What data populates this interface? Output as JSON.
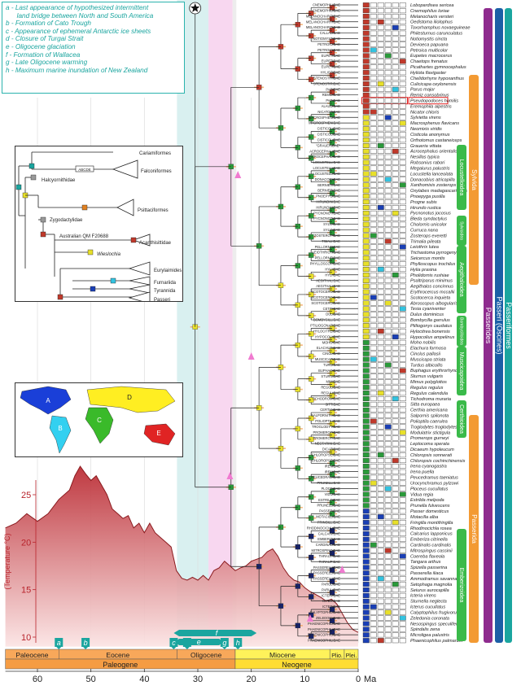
{
  "events": [
    {
      "letter": "a",
      "text": "a - Last appearance of hypothesized intermittent\n      land bridge between North and South America"
    },
    {
      "letter": "b",
      "text": "b - Formation of Cato Trough"
    },
    {
      "letter": "c",
      "text": "c - Appearance of ephemeral Antarctic ice sheets"
    },
    {
      "letter": "d",
      "text": "d - Closure of Turgai Strait"
    },
    {
      "letter": "e",
      "text": "e - Oligocene glaciation"
    },
    {
      "letter": "f",
      "text": "f - Formation of Wallacea"
    },
    {
      "letter": "g",
      "text": "g - Late Oligocene warming"
    },
    {
      "letter": "h",
      "text": "h - Maximum marine inundation of New Zealand"
    }
  ],
  "event_markers": [
    {
      "label": "a",
      "ma": 56
    },
    {
      "label": "b",
      "ma": 51
    },
    {
      "label": "c",
      "ma": 34.5
    },
    {
      "label": "d",
      "ma": 32
    },
    {
      "label": "e",
      "ma": 28
    },
    {
      "label": "f",
      "ma": 23
    },
    {
      "label": "g",
      "ma": 25
    },
    {
      "label": "h",
      "ma": 22.5
    }
  ],
  "time_axis": {
    "unit": "Ma",
    "ticks": [
      "60",
      "50",
      "40",
      "30",
      "20",
      "10",
      "0"
    ],
    "tick_values": [
      60,
      50,
      40,
      30,
      20,
      10,
      0
    ],
    "range": [
      66,
      0
    ],
    "epochs": [
      {
        "name": "Paleocene",
        "start": 66,
        "end": 56
      },
      {
        "name": "Eocene",
        "start": 56,
        "end": 33.9
      },
      {
        "name": "Oligocene",
        "start": 33.9,
        "end": 23
      },
      {
        "name": "Miocene",
        "start": 23,
        "end": 5.3
      },
      {
        "name": "Plio.",
        "start": 5.3,
        "end": 2.6
      },
      {
        "name": "Plei.",
        "start": 2.6,
        "end": 0
      }
    ],
    "periods": [
      {
        "name": "Paleogene",
        "start": 66,
        "end": 23
      },
      {
        "name": "Neogene",
        "start": 23,
        "end": 0
      }
    ]
  },
  "temperature": {
    "ylabel": "(Temperature °C)",
    "ticks": [
      "25",
      "20",
      "15",
      "10"
    ],
    "tick_values": [
      25,
      20,
      15,
      10
    ],
    "range": [
      9,
      28
    ],
    "curve": [
      [
        66,
        21.5
      ],
      [
        64,
        22
      ],
      [
        62,
        23
      ],
      [
        60,
        22.2
      ],
      [
        58,
        23
      ],
      [
        56,
        24.5
      ],
      [
        54,
        25.5
      ],
      [
        53,
        27
      ],
      [
        52,
        28
      ],
      [
        51,
        27.2
      ],
      [
        50,
        26.5
      ],
      [
        49,
        27
      ],
      [
        48,
        26
      ],
      [
        47,
        25
      ],
      [
        46,
        23.5
      ],
      [
        45,
        23
      ],
      [
        44,
        22.5
      ],
      [
        43,
        22.8
      ],
      [
        42,
        21.5
      ],
      [
        41,
        22
      ],
      [
        40,
        21
      ],
      [
        39,
        22
      ],
      [
        38,
        21
      ],
      [
        37,
        20.5
      ],
      [
        36,
        20
      ],
      [
        35,
        19.5
      ],
      [
        34,
        17
      ],
      [
        33,
        16.2
      ],
      [
        32,
        16
      ],
      [
        31,
        16.3
      ],
      [
        30,
        16
      ],
      [
        29,
        16.5
      ],
      [
        28,
        16
      ],
      [
        27,
        17
      ],
      [
        26,
        17.3
      ],
      [
        25,
        18
      ],
      [
        24,
        17.5
      ],
      [
        23,
        17
      ],
      [
        22,
        17.3
      ],
      [
        21,
        17.5
      ],
      [
        20,
        18
      ],
      [
        19,
        18.2
      ],
      [
        18,
        18.4
      ],
      [
        17,
        19
      ],
      [
        16,
        19.3
      ],
      [
        15,
        18.5
      ],
      [
        14,
        17.3
      ],
      [
        13,
        16.5
      ],
      [
        12,
        16
      ],
      [
        11,
        15.8
      ],
      [
        10,
        15.2
      ],
      [
        9,
        14.8
      ],
      [
        8,
        14.5
      ],
      [
        7,
        14.2
      ],
      [
        6,
        13.8
      ],
      [
        5,
        14
      ],
      [
        4,
        13.5
      ],
      [
        3,
        12.5
      ],
      [
        2,
        11.5
      ],
      [
        1,
        10.8
      ],
      [
        0,
        10.5
      ]
    ]
  },
  "inset_tree": {
    "taxa": [
      "Cariamiformes",
      "Falconiformes",
      "Halcyornithidae",
      "Psittaciformes",
      "Zygodactylidae",
      "Australian QM F20688",
      "Acanthisittidae",
      "Wieslochia",
      "Eurylaimides",
      "Furnariida",
      "Tyrannida",
      "Passeri"
    ],
    "node_label": "ABCDE"
  },
  "continents": [
    "A",
    "B",
    "C",
    "D",
    "E"
  ],
  "clade_bars": {
    "orange": [
      {
        "name": "Sylvida",
        "top": 92,
        "bottom": 350
      },
      {
        "name": "Passerida",
        "top": 510,
        "bottom": 790
      }
    ],
    "green": [
      {
        "name": "Locustelloidea",
        "top": 178,
        "bottom": 258
      },
      {
        "name": "Sylvioidea",
        "top": 265,
        "bottom": 302
      },
      {
        "name": "Aegithaloidea",
        "top": 302,
        "bottom": 385
      },
      {
        "name": "Bombycilloidea",
        "top": 388,
        "bottom": 426
      },
      {
        "name": "Muscicapoidea",
        "top": 426,
        "bottom": 486
      },
      {
        "name": "Certhioidea",
        "top": 492,
        "bottom": 538
      },
      {
        "name": "Emberizoidea",
        "top": 650,
        "bottom": 788
      }
    ],
    "purple": {
      "name": "Passerides",
      "top": 10,
      "bottom": 790
    },
    "blue": {
      "name": "Passeri (Oscines)",
      "top": 10,
      "bottom": 790
    },
    "teal": {
      "name": "Passeriformes",
      "top": 10,
      "bottom": 790
    }
  },
  "highlighted_taxon": "Pseudopodoces humilis",
  "tips": [
    [
      "CNEMOPHILIDAE",
      "Lobopardisea sericea"
    ],
    [
      "CNEMOPHILIDAE",
      "Cnemophilus loriae"
    ],
    [
      "MELANOCHARITIDAE",
      "Melanocharis versteri"
    ],
    [
      "MELANOCHARITIDAE",
      "Oedistoma iliolophus"
    ],
    [
      "MELANOCHARITIDAE",
      "Toxorhamphus novaeguineae"
    ],
    [
      "CALLAEIDAE",
      "Philesturnus carunculatus"
    ],
    [
      "NOTIOMYSTIDAE",
      "Notiomystis cincta"
    ],
    [
      "PETROICIDAE",
      "Devioeca papuana"
    ],
    [
      "PETROICIDAE",
      "Petroica multicolor"
    ],
    [
      "EUPETIDAE",
      "Eupetes macrocerus"
    ],
    [
      "EUPETIDAE",
      "Chaetops frenatus"
    ],
    [
      "EUPETIDAE",
      "Picathartes gymnocephalus"
    ],
    [
      "HYLIOTIDAE",
      "Hyliota flavigaster"
    ],
    [
      "STENOSTIRIDAE",
      "Chelidorhynx hypoxanthus"
    ],
    [
      "STENOSTIRIDAE",
      "Culicicapa ceylonensis"
    ],
    [
      "PARIDAE",
      "Parus major"
    ],
    [
      "REMIZIDAE",
      "Remiz consobrinus"
    ],
    [
      "PARIDAE",
      "Pseudopodoces humilis"
    ],
    [
      "ALAUDIDAE",
      "Eremophila alpestris"
    ],
    [
      "NICATORIDAE",
      "Nicator chloris"
    ],
    [
      "MACROSPHENIDAE",
      "Sylvietta virens"
    ],
    [
      "MACROSPHENIDAE",
      "Macrosphenus flavicans"
    ],
    [
      "CISTICOLIDAE",
      "Neomixis viridis"
    ],
    [
      "CISTICOLIDAE",
      "Cisticola anonymus"
    ],
    [
      "CISTICOLIDAE",
      "Orthotomus castaneiceps"
    ],
    [
      "\"GRAUERIDAE\"",
      "Graueria vittata"
    ],
    [
      "ACROCEPHALIDAE",
      "Acrocephalus orientalis"
    ],
    [
      "ACROCEPHALIDAE",
      "Nesillas typica"
    ],
    [
      "LOCUSTELLIDAE",
      "Robsonius rabori"
    ],
    [
      "LOCUSTELLIDAE",
      "Megalurus palustris"
    ],
    [
      "LOCUSTELLIDAE",
      "Locustella lanceolata"
    ],
    [
      "DONACOBIIDAE",
      "Donacobius atricapilla"
    ],
    [
      "BERNIERIDAE",
      "Xanthomixis zosterops"
    ],
    [
      "BERNIERIDAE",
      "Oxylabes madagascariensis"
    ],
    [
      "PNOEPYGIDAE",
      "Pnoepyga pusilla"
    ],
    [
      "HIRUNDINIDAE",
      "Progne subis"
    ],
    [
      "HIRUNDINIDAE",
      "Hirundo rustica"
    ],
    [
      "PYCNONOTIDAE",
      "Pycnonotus jocosus"
    ],
    [
      "PYCNONOTIDAE",
      "Bleda syndactylus"
    ],
    [
      "SYLVIIDAE",
      "Cholornis unicolor"
    ],
    [
      "SYLVIIDAE",
      "Curruca nana"
    ],
    [
      "ZOSTEROPIDAE",
      "Zosterops everetti"
    ],
    [
      "TIMALIIDAE",
      "Trimalia pileata"
    ],
    [
      "PELLORNEIDAE",
      "Leiothrix lutea"
    ],
    [
      "LEIOTHRICHIDAE",
      "Trichastoma pyrrogenys"
    ],
    [
      "PELLORNEIDAE",
      "Seicercus montis"
    ],
    [
      "PHYLLOSCOPIDAE",
      "Phylloscopus trochilus"
    ],
    [
      "HYLIIDAE",
      "Hylia prasina"
    ],
    [
      "HYLIIDAE",
      "Pholidornis rushiae"
    ],
    [
      "AEGITHALIDAE",
      "Psaltriparus minimus"
    ],
    [
      "AEGITHALIDAE",
      "Aegithalos concinnus"
    ],
    [
      "SCOTOCERCIDAE",
      "Erythrocercus mccallii"
    ],
    [
      "SCOTOCERCIDAE",
      "Scotocerca inquieta"
    ],
    [
      "SCOTOCERCIDAE",
      "Abroscopus albogularis"
    ],
    [
      "CETTIIDAE",
      "Tesia cyaniventer"
    ],
    [
      "DULIDAE",
      "Dulus dominicus"
    ],
    [
      "BOMBYCILLIDAE",
      "Bombycilla garrulus"
    ],
    [
      "PTILIOGONATIDAE",
      "Ptiliogonys caudatus"
    ],
    [
      "HYLOCITREIDAE",
      "Hylocitrea bonensis"
    ],
    [
      "HYPOCOLIIDAE",
      "Hypocolius ampelinus"
    ],
    [
      "MOHOIDAE",
      "Moho nobilis"
    ],
    [
      "ELACHURIDAE",
      "Elachura formosa"
    ],
    [
      "CINCLIDAE",
      "Cinclus pallasii"
    ],
    [
      "MUSCICAPIDAE",
      "Muscicapa striata"
    ],
    [
      "TURDIDAE",
      "Turdus albicollis"
    ],
    [
      "BUPHAGIDAE",
      "Buphagus erythrorhynchus"
    ],
    [
      "STURNIDAE",
      "Sturnus vulgaris"
    ],
    [
      "MIMIDAE",
      "Mimus polyglottos"
    ],
    [
      "REGULIDAE",
      "Regulus regulus"
    ],
    [
      "REGULIDAE",
      "Regulus calendula"
    ],
    [
      "TICHODROMIDAE",
      "Tichodroma muraria"
    ],
    [
      "SITTIDAE",
      "Sitta europaea"
    ],
    [
      "CERTHIIDAE",
      "Certhia americana"
    ],
    [
      "SALPORNITHIDAE",
      "Salpornis spilonota"
    ],
    [
      "POLIOPTILIDAE",
      "Polioptila caerulea"
    ],
    [
      "TROGLODYTIDAE",
      "Troglodytes troglodytes"
    ],
    [
      "PROMEROPIDAE",
      "Modulatrix stictigula"
    ],
    [
      "PROMEROPIDAE",
      "Promerops gurneyi"
    ],
    [
      "NECTARINIIDAE",
      "Leptocoma sperata"
    ],
    [
      "DICAEIDAE",
      "Dicaeum hypoleucum"
    ],
    [
      "CHLOROPSEIDAE",
      "Chloropsis sonnerati"
    ],
    [
      "CHLOROPSEIDAE",
      "Chloropsis cochinchinensis"
    ],
    [
      "IRENIDAE",
      "Irena cyanogastra"
    ],
    [
      "IRENIDAE",
      "Irena puella"
    ],
    [
      "PEUCEDRAMIDAE",
      "Peucedramus taeniatus"
    ],
    [
      "PRUNELLIDAE",
      "Urocynchramus pylzowi"
    ],
    [
      "PLOCEIDAE",
      "Ploceus cucullatus"
    ],
    [
      "VIDUIDAE",
      "Vidua regia"
    ],
    [
      "ESTRILDIDAE",
      "Estrilda melpoda"
    ],
    [
      "PRUNELLIDAE",
      "Prunella fulvescens"
    ],
    [
      "PASSERIDAE",
      "Passer domesticus"
    ],
    [
      "MOTACILLIDAE",
      "Motacilla alba"
    ],
    [
      "FRINGILLIDAE",
      "Fringilla montifringilla"
    ],
    [
      "RHODINOCICHLIDAE",
      "Rhodinocichla rosea"
    ],
    [
      "CALCARIIDAE",
      "Calcarius lapponicus"
    ],
    [
      "EMBERIZIDAE",
      "Emberiza citrinella"
    ],
    [
      "CARDINALIDAE",
      "Cardinalis cardinalis"
    ],
    [
      "MITROSPINGIDAE",
      "Mitrospingus cassinii"
    ],
    [
      "THRAUPIDAE",
      "Coereba flaveola"
    ],
    [
      "THRAUPIDAE",
      "Tangara arthus"
    ],
    [
      "PASSERELLIDAE",
      "Spizella passerina"
    ],
    [
      "PASSERELLIDAE",
      "Passerella iliaca"
    ],
    [
      "PASSERELLIDAE",
      "Ammodramus savannarum"
    ],
    [
      "PARULIDAE",
      "Setophaga magnolia"
    ],
    [
      "PARULIDAE",
      "Seiurus aurocapilla"
    ],
    [
      "ICTERIIDAE",
      "Icteria virens"
    ],
    [
      "ICTERIDAE",
      "Sturnella neglecta"
    ],
    [
      "ICTERIDAE",
      "Icterus cucullatus"
    ],
    [
      "CALYPTOPHILIDAE",
      "Calyptophilus frugivorus"
    ],
    [
      "ZELEDONIIDAE",
      "Zeledonia coronata"
    ],
    [
      "PHAENICOPHILIDAE",
      "Nesospingus speculiferus"
    ],
    [
      "PHAENICOPHILIDAE",
      "Spindalis zena"
    ],
    [
      "PHAENICOPHILIDAE",
      "Microligea palustris"
    ],
    [
      "PHAENICOPHILIDAE",
      "Phaenicophilus palmarum"
    ]
  ],
  "colors": {
    "teal": "#1aa59f",
    "red": "#c0392b",
    "green": "#2a9a3a",
    "yellow": "#e8e02a",
    "blue": "#1a3fb5",
    "navy": "#17236b",
    "orange": "#f39a33",
    "pink": "#f07bd0",
    "purple": "#8e2b8e",
    "barblue": "#1b5fa6"
  }
}
